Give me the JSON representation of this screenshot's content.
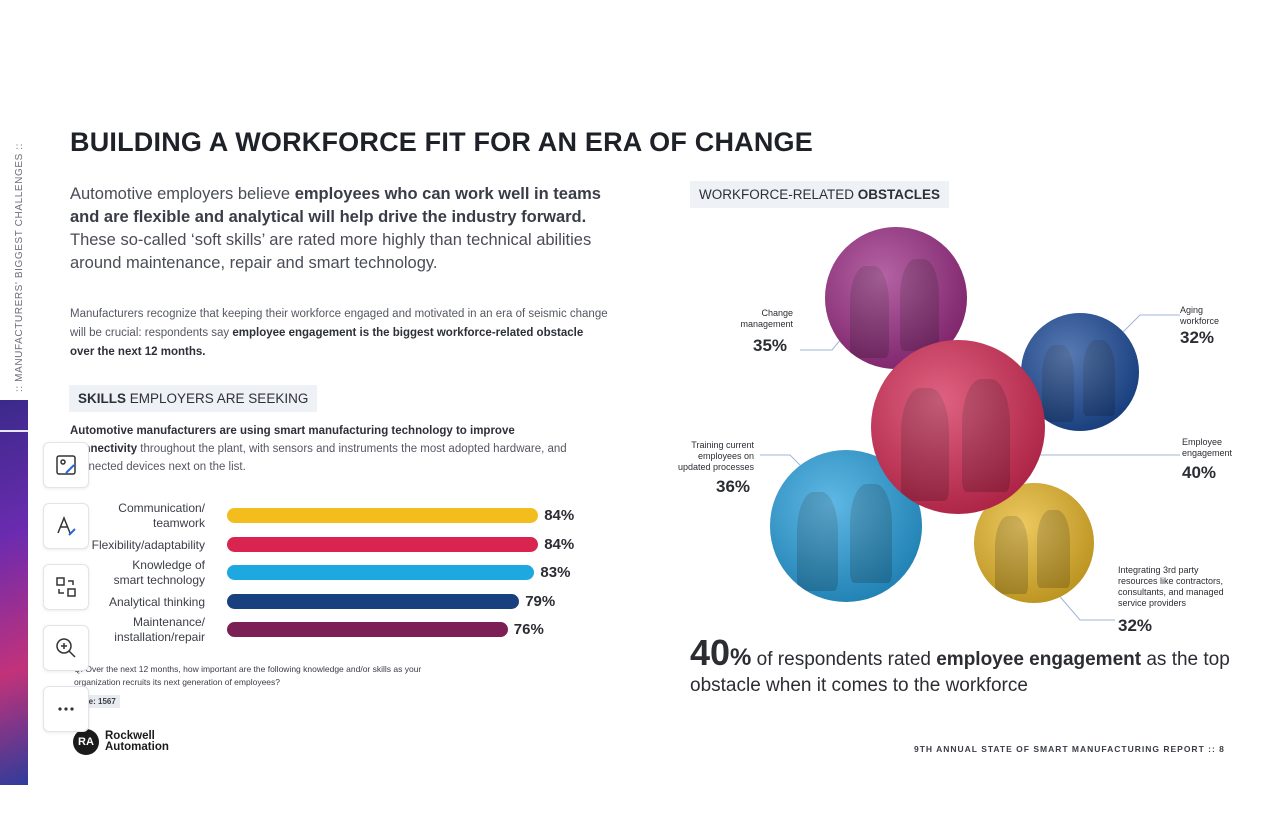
{
  "sidebar_label": ":: MANUFACTURERS' BIGGEST CHALLENGES ::",
  "title": {
    "regular": "BUILDING A WORKFORCE FIT FOR AN ",
    "bold": "ERA OF CHANGE"
  },
  "intro": {
    "p1_a": "Automotive employers believe ",
    "p1_bold": "employees who can work well in teams and are flexible and analytical will help drive the industry forward.",
    "p1_b": " These so-called ‘soft skills’ are rated more highly than technical abilities around maintenance, repair and smart technology.",
    "p2_a": "Manufacturers recognize that keeping their workforce engaged and motivated in an era of seismic change will be crucial: respondents say ",
    "p2_bold": "employee engagement is the biggest workforce-related obstacle over the next 12 months."
  },
  "skills": {
    "chip_bold": "SKILLS",
    "chip_rest": " EMPLOYERS ARE SEEKING",
    "desc_bold": "Automotive manufacturers are using smart manufacturing technology to improve connectivity",
    "desc_rest": " throughout the plant, with sensors and instruments the most adopted hardware, and connected devices next on the list."
  },
  "chart_data": {
    "type": "bar",
    "orientation": "horizontal",
    "categories": [
      "Communication/\nteamwork",
      "Flexibility/adaptability",
      "Knowledge of\nsmart technology",
      "Analytical thinking",
      "Maintenance/\ninstallation/repair"
    ],
    "values": [
      84,
      84,
      83,
      79,
      76
    ],
    "value_labels": [
      "84%",
      "84%",
      "83%",
      "79%",
      "76%"
    ],
    "colors": [
      "#f2bd1d",
      "#d8244f",
      "#1ea8e0",
      "#183f7e",
      "#7c1f55"
    ],
    "unit": "%"
  },
  "footnote": {
    "question": "Q. Over the next 12 months, how important are the following knowledge and/or skills as your organization recruits its next generation of employees?",
    "base": "Base: 1567"
  },
  "logo": {
    "mark": "RA",
    "text": "Rockwell\nAutomation"
  },
  "toolbar": [
    "draw-icon",
    "text-icon",
    "convert-icon",
    "zoom-icon",
    "more-icon"
  ],
  "obstacles": {
    "chip_regular": "WORKFORCE-RELATED ",
    "chip_bold": "OBSTACLES",
    "items": [
      {
        "label": "Change\nmanagement",
        "pct": "35%",
        "value": 35,
        "color": "#9c2f86"
      },
      {
        "label": "Aging\nworkforce",
        "pct": "32%",
        "value": 32,
        "color": "#1f4d9a"
      },
      {
        "label": "Employee\nengagement",
        "pct": "40%",
        "value": 40,
        "color": "#d42d57"
      },
      {
        "label": "Training current\nemployees on\nupdated processes",
        "pct": "36%",
        "value": 36,
        "color": "#2aa0dc"
      },
      {
        "label": "Integrating 3rd party\nresources like contractors,\nconsultants, and managed\nservice providers",
        "pct": "32%",
        "value": 32,
        "color": "#e6b62a"
      }
    ]
  },
  "big_stat": {
    "number": "40",
    "percent_sign": "%",
    "text_a": " of respondents rated ",
    "text_bold": "employee engagement",
    "text_b": " as the top obstacle when it comes to the workforce"
  },
  "footer": "9TH ANNUAL STATE OF SMART MANUFACTURING REPORT :: 8"
}
